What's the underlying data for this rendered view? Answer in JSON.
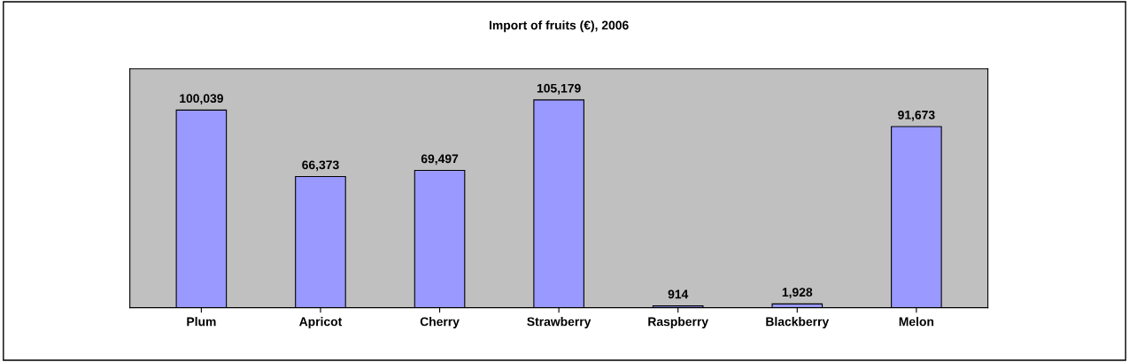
{
  "chart_data": {
    "type": "bar",
    "title": "Import of fruits (€), 2006",
    "categories": [
      "Plum",
      "Apricot",
      "Cherry",
      "Strawberry",
      "Raspberry",
      "Blackberry",
      "Melon"
    ],
    "values": [
      100039,
      66373,
      69497,
      105179,
      914,
      1928,
      91673
    ],
    "value_labels": [
      "100,039",
      "66,373",
      "69,497",
      "105,179",
      "914",
      "1,928",
      "91,673"
    ],
    "color": "#9999ff",
    "grid": false,
    "legend": false
  }
}
